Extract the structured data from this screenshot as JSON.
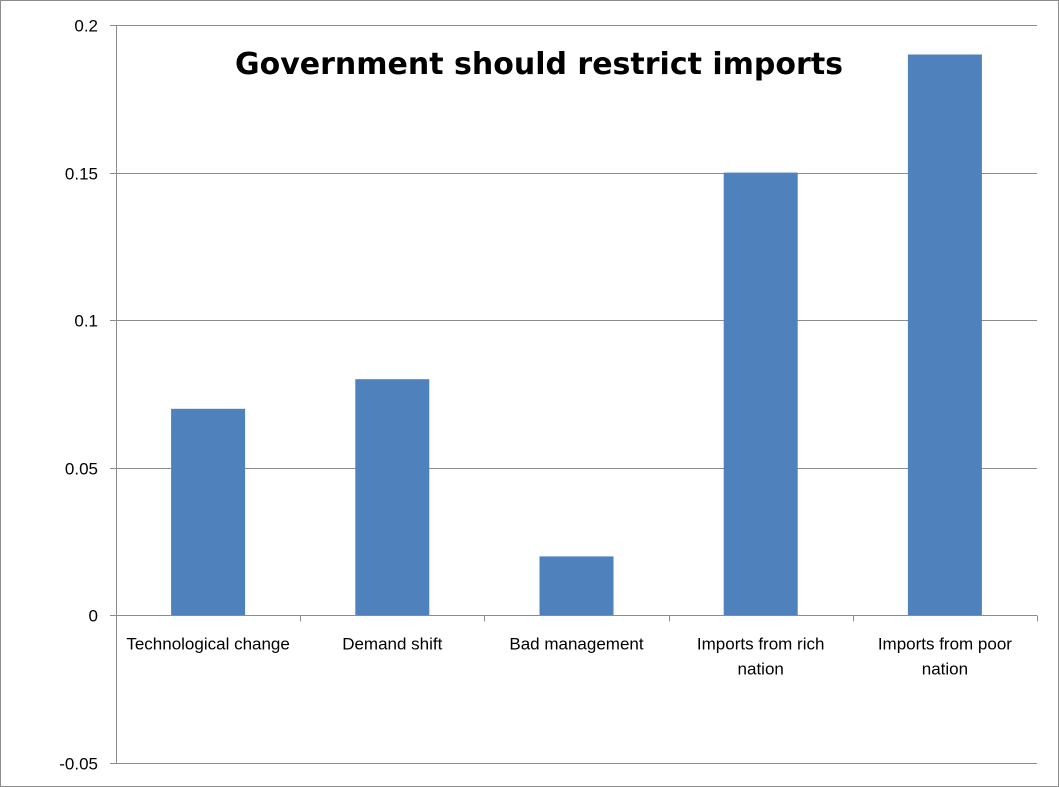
{
  "chart_data": {
    "type": "bar",
    "title": "Government should restrict imports",
    "categories": [
      [
        "Technological change"
      ],
      [
        "Demand shift"
      ],
      [
        "Bad management"
      ],
      [
        "Imports from rich",
        "nation"
      ],
      [
        "Imports from poor",
        "nation"
      ]
    ],
    "values": [
      0.07,
      0.08,
      0.02,
      0.15,
      0.19
    ],
    "ylim": [
      -0.05,
      0.2
    ],
    "yticks": [
      -0.05,
      0,
      0.05,
      0.1,
      0.15,
      0.2
    ],
    "ytick_labels": [
      "-0.05",
      "0",
      "0.05",
      "0.1",
      "0.15",
      "0.2"
    ],
    "bar_color": "#4F81BD",
    "grid": true,
    "xlabel": "",
    "ylabel": ""
  }
}
